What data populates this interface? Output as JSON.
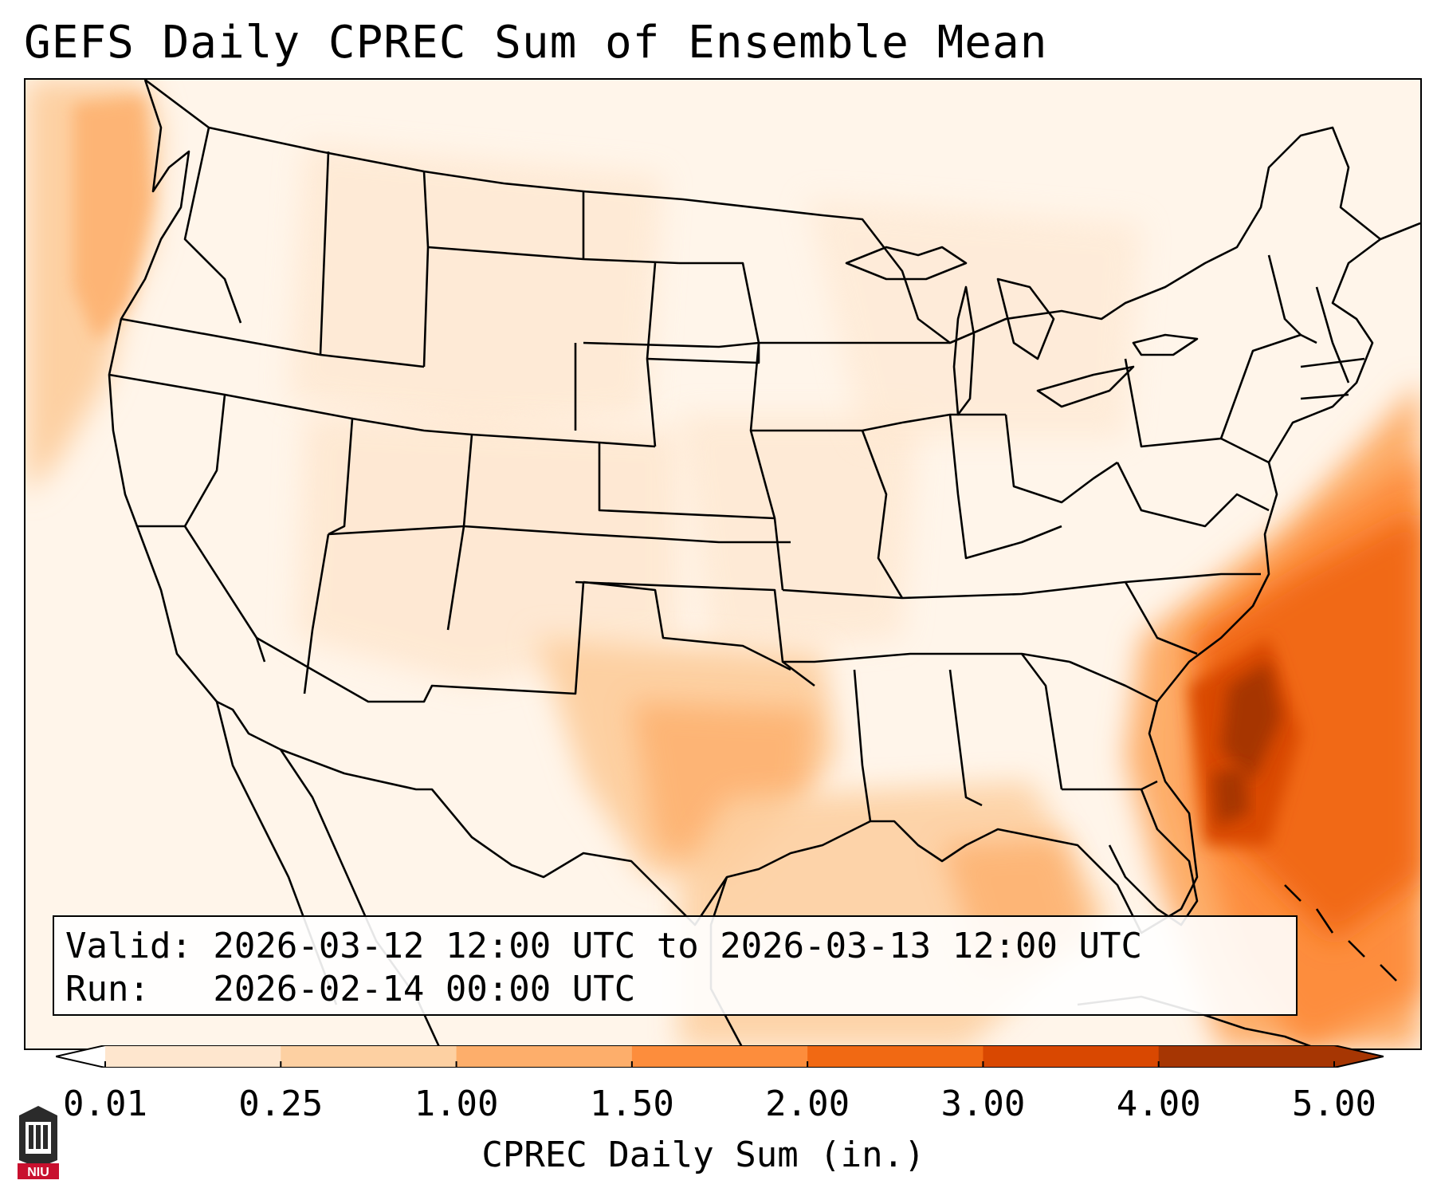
{
  "title": "GEFS Daily CPREC Sum of Ensemble Mean",
  "info": {
    "valid_line": "Valid: 2026-03-12 12:00 UTC to 2026-03-13 12:00 UTC",
    "run_line": "Run:   2026-02-14 00:00 UTC"
  },
  "colorbar": {
    "label": "CPREC Daily Sum (in.)",
    "ticks": [
      "0.01",
      "0.25",
      "1.00",
      "1.50",
      "2.00",
      "3.00",
      "4.00",
      "5.00"
    ],
    "colors": [
      "#fff5eb",
      "#fee6ce",
      "#fdd0a2",
      "#fdae6b",
      "#fd8d3c",
      "#f16913",
      "#d94801",
      "#a63603"
    ],
    "extend": "both"
  },
  "map": {
    "region": "Contiguous United States and surrounding waters",
    "projection": "Lambert Conformal",
    "max_region": "Atlantic off the Carolinas and Georgia coast"
  },
  "logo": {
    "text": "NIU"
  }
}
